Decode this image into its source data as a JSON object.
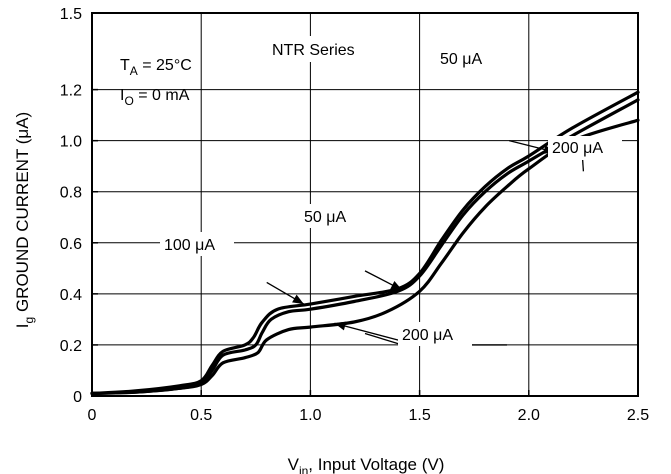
{
  "chart_data": {
    "type": "line",
    "xlabel": {
      "main": "V",
      "sub": "in",
      "rest": ", Input Voltage (V)"
    },
    "ylabel": {
      "main": "I",
      "sub": "g",
      "rest": " GROUND CURRENT (μA)"
    },
    "xlim": [
      0,
      2.5
    ],
    "ylim": [
      0,
      1.5
    ],
    "grid": true,
    "x_ticks": [
      0,
      0.5,
      1.0,
      1.5,
      2.0,
      2.5
    ],
    "x_tick_labels": [
      "0",
      "0.5",
      "1.0",
      "1.5",
      "2.0",
      "2.5"
    ],
    "y_ticks": [
      0,
      0.2,
      0.4,
      0.6,
      0.8,
      1.0,
      1.2,
      1.5
    ],
    "y_tick_labels": [
      "0",
      "0.2",
      "0.4",
      "0.6",
      "0.8",
      "1.0",
      "1.2",
      "1.5"
    ],
    "conditions": {
      "ta": {
        "main": "T",
        "sub": "A",
        "rest": " = 25°C"
      },
      "io": {
        "main": "I",
        "sub": "O",
        "rest": " = 0 mA"
      }
    },
    "series_title": "NTR Series",
    "series": [
      {
        "name": "50 μA",
        "points": [
          [
            0,
            0.01
          ],
          [
            0.2,
            0.015
          ],
          [
            0.4,
            0.03
          ],
          [
            0.5,
            0.05
          ],
          [
            0.55,
            0.1
          ],
          [
            0.6,
            0.16
          ],
          [
            0.7,
            0.18
          ],
          [
            0.75,
            0.2
          ],
          [
            0.78,
            0.25
          ],
          [
            0.82,
            0.3
          ],
          [
            0.9,
            0.33
          ],
          [
            1.0,
            0.34
          ],
          [
            1.2,
            0.37
          ],
          [
            1.4,
            0.41
          ],
          [
            1.5,
            0.47
          ],
          [
            1.6,
            0.59
          ],
          [
            1.7,
            0.71
          ],
          [
            1.8,
            0.8
          ],
          [
            1.9,
            0.87
          ],
          [
            2.0,
            0.92
          ],
          [
            2.2,
            1.02
          ],
          [
            2.5,
            1.16
          ]
        ]
      },
      {
        "name": "100 μA",
        "points": [
          [
            0,
            0.01
          ],
          [
            0.2,
            0.02
          ],
          [
            0.4,
            0.04
          ],
          [
            0.5,
            0.06
          ],
          [
            0.55,
            0.12
          ],
          [
            0.6,
            0.175
          ],
          [
            0.7,
            0.2
          ],
          [
            0.74,
            0.23
          ],
          [
            0.78,
            0.29
          ],
          [
            0.85,
            0.34
          ],
          [
            1.0,
            0.36
          ],
          [
            1.2,
            0.39
          ],
          [
            1.4,
            0.42
          ],
          [
            1.5,
            0.48
          ],
          [
            1.6,
            0.61
          ],
          [
            1.7,
            0.73
          ],
          [
            1.8,
            0.82
          ],
          [
            1.9,
            0.89
          ],
          [
            2.0,
            0.94
          ],
          [
            2.2,
            1.05
          ],
          [
            2.5,
            1.19
          ]
        ]
      },
      {
        "name": "200 μA",
        "points": [
          [
            0,
            0.01
          ],
          [
            0.2,
            0.015
          ],
          [
            0.4,
            0.03
          ],
          [
            0.5,
            0.045
          ],
          [
            0.55,
            0.08
          ],
          [
            0.6,
            0.13
          ],
          [
            0.7,
            0.15
          ],
          [
            0.76,
            0.17
          ],
          [
            0.8,
            0.22
          ],
          [
            0.9,
            0.26
          ],
          [
            1.0,
            0.27
          ],
          [
            1.2,
            0.29
          ],
          [
            1.35,
            0.33
          ],
          [
            1.5,
            0.41
          ],
          [
            1.6,
            0.52
          ],
          [
            1.7,
            0.64
          ],
          [
            1.8,
            0.74
          ],
          [
            1.9,
            0.82
          ],
          [
            2.0,
            0.89
          ],
          [
            2.2,
            1.0
          ],
          [
            2.5,
            1.08
          ]
        ]
      }
    ],
    "annotations": [
      {
        "id": "50-top",
        "text": "50 μA"
      },
      {
        "id": "200-top",
        "text": "200 μA"
      },
      {
        "id": "50-mid",
        "text": "50 μA"
      },
      {
        "id": "100",
        "text": "100 μA"
      },
      {
        "id": "200-bottom",
        "text": "200 μA"
      }
    ]
  }
}
